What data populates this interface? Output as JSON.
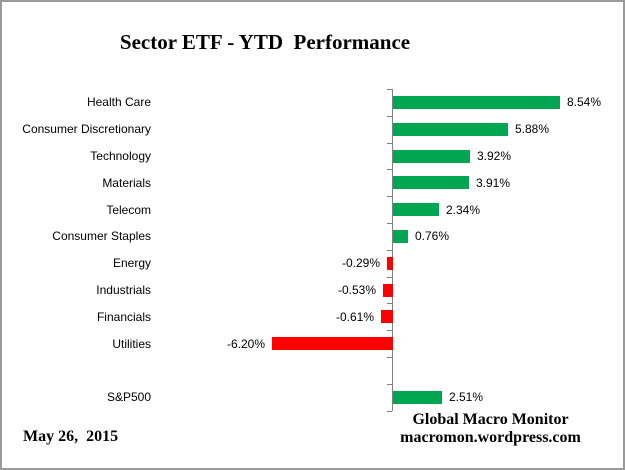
{
  "title": "Sector ETF - YTD  Performance",
  "chart_data": {
    "type": "bar",
    "orientation": "horizontal",
    "title": "Sector ETF - YTD  Performance",
    "categories": [
      "Health Care",
      "Consumer Discretionary",
      "Technology",
      "Materials",
      "Telecom",
      "Consumer Staples",
      "Energy",
      "Industrials",
      "Financials",
      "Utilities",
      "",
      "S&P500"
    ],
    "values": [
      8.54,
      5.88,
      3.92,
      3.91,
      2.34,
      0.76,
      -0.29,
      -0.53,
      -0.61,
      -6.2,
      null,
      2.51
    ],
    "value_labels": [
      "8.54%",
      "5.88%",
      "3.92%",
      "3.91%",
      "2.34%",
      "0.76%",
      "-0.29%",
      "-0.53%",
      "-0.61%",
      "-6.20%",
      "",
      "2.51%"
    ],
    "xlabel": "",
    "ylabel": "",
    "xlim": [
      -12.3,
      12
    ],
    "grid": false,
    "legend": false,
    "value_label_position": "outside-end",
    "positive_color": "#00A651",
    "negative_color": "#FF0000",
    "axis_color": "#808080"
  },
  "footer": {
    "date": "May 26,  2015",
    "attribution": [
      "Global Macro Monitor",
      "macromon.wordpress.com"
    ]
  }
}
